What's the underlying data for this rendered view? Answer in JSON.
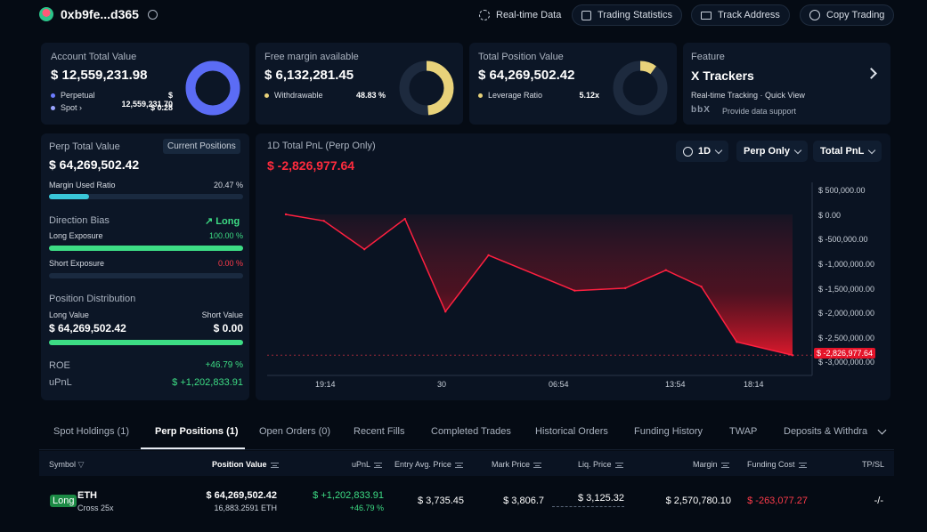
{
  "header": {
    "address": "0xb9fe...d365",
    "buttons": [
      "Real-time Data",
      "Trading Statistics",
      "Track Address",
      "Copy Trading"
    ]
  },
  "account": {
    "title": "Account Total Value",
    "value": "$ 12,559,231.98",
    "perp_label": "Perpetual",
    "perp_value": "$ 12,559,231.70",
    "spot_label": "Spot",
    "spot_value": "$ 0.28",
    "perp_share_pct": 100
  },
  "margin": {
    "title": "Free margin available",
    "value": "$ 6,132,281.45",
    "withdrawable_label": "Withdrawable",
    "withdrawable_pct": "48.83 %",
    "withdrawable_fraction": 0.4883
  },
  "position_value": {
    "title": "Total Position Value",
    "value": "$ 64,269,502.42",
    "leverage_label": "Leverage Ratio",
    "leverage": "5.12x",
    "leverage_fraction": 0.1
  },
  "feature": {
    "title": "Feature",
    "name": "X Trackers",
    "desc": "Real-time Tracking · Quick View",
    "logo": "bbX",
    "support": "Provide data support"
  },
  "perp": {
    "title": "Perp Total Value",
    "current_positions": "Current Positions",
    "value": "$ 64,269,502.42",
    "margin_used_label": "Margin Used Ratio",
    "margin_used": "20.47 %",
    "margin_used_fraction": 0.2047,
    "direction_label": "Direction Bias",
    "direction": "Long",
    "long_exposure_label": "Long Exposure",
    "long_exposure": "100.00 %",
    "long_exposure_fraction": 1.0,
    "short_exposure_label": "Short Exposure",
    "short_exposure": "0.00 %",
    "short_exposure_fraction": 0.0,
    "distribution_label": "Position Distribution",
    "long_value_label": "Long Value",
    "short_value_label": "Short Value",
    "long_value": "$ 64,269,502.42",
    "short_value": "$ 0.00",
    "long_share_fraction": 1.0,
    "roe_label": "ROE",
    "roe": "+46.79 %",
    "upnl_label": "uPnL",
    "upnl": "$ +1,202,833.91"
  },
  "chart_header": {
    "title": "1D Total PnL (Perp Only)",
    "value": "$ -2,826,977.64",
    "period": "1D",
    "scope": "Perp Only",
    "metric": "Total PnL"
  },
  "chart_data": {
    "type": "area",
    "title": "1D Total PnL (Perp Only)",
    "x_tick_labels": [
      "19:14",
      "30",
      "06:54",
      "13:54",
      "18:14"
    ],
    "y_tick_labels": [
      "$ 500,000.00",
      "$ 0.00",
      "$ -500,000.00",
      "$ -1,000,000.00",
      "$ -1,500,000.00",
      "$ -2,000,000.00",
      "$ -2,500,000.00",
      "$ -3,000,000.00"
    ],
    "ylim": [
      -3100000,
      550000
    ],
    "xlim": [
      0,
      100
    ],
    "series": [
      {
        "name": "Total PnL",
        "x": [
          0,
          7.5,
          15.5,
          23.5,
          31.5,
          40.0,
          57.0,
          67.0,
          75.0,
          82.0,
          89.0,
          100.0
        ],
        "values": [
          0,
          -130000,
          -700000,
          -90000,
          -1950000,
          -820000,
          -1530000,
          -1480000,
          -1120000,
          -1450000,
          -2560000,
          -2826977.64
        ]
      }
    ],
    "current_value_label": "$ -2,826,977.64",
    "current_value": -2826977.64
  },
  "tabs": [
    "Spot Holdings (1)",
    "Perp Positions (1)",
    "Open Orders (0)",
    "Recent Fills",
    "Completed Trades",
    "Historical Orders",
    "Funding History",
    "TWAP",
    "Deposits & Withdraw"
  ],
  "table": {
    "headers": [
      "Symbol",
      "Position Value",
      "uPnL",
      "Entry Avg. Price",
      "Mark Price",
      "Liq. Price",
      "Margin",
      "Funding Cost",
      "TP/SL"
    ],
    "row": {
      "side": "Long",
      "symbol": "ETH",
      "leverage": "Cross 25x",
      "position_value": "$ 64,269,502.42",
      "position_size": "16,883.2591 ETH",
      "upnl": "$ +1,202,833.91",
      "upnl_pct": "+46.79 %",
      "entry_price": "$ 3,735.45",
      "mark_price": "$ 3,806.7",
      "liq_price": "$ 3,125.32",
      "margin": "$ 2,570,780.10",
      "funding_cost": "$ -263,077.27",
      "tpsl": "-/-"
    }
  },
  "colors": {
    "green": "#3ddc84",
    "red": "#ff3b4a",
    "blue_ring": "#5b6cf5",
    "yellow_ring": "#e8d27a",
    "cyan_bar": "#39c6d8"
  }
}
